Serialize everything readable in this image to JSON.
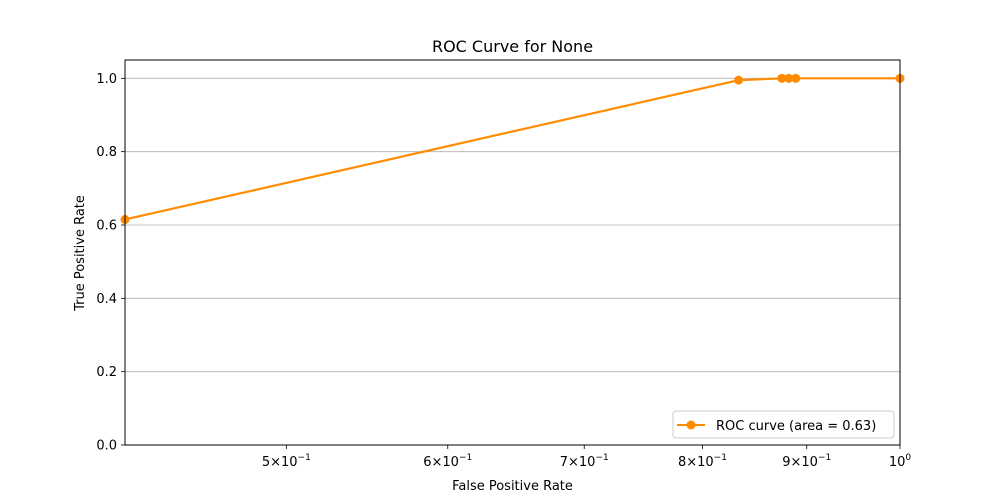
{
  "chart_data": {
    "type": "line",
    "title": "ROC Curve for None",
    "xlabel": "False Positive Rate",
    "ylabel": "True Positive Rate",
    "x_scale": "log",
    "xlim": [
      0.4167,
      1.0
    ],
    "ylim": [
      0.0,
      1.05
    ],
    "grid": "y",
    "x_ticks": [
      {
        "value": 0.5,
        "base": "5",
        "exp": "−1"
      },
      {
        "value": 0.6,
        "base": "6",
        "exp": "−1"
      },
      {
        "value": 0.7,
        "base": "7",
        "exp": "−1"
      },
      {
        "value": 0.8,
        "base": "8",
        "exp": "−1"
      },
      {
        "value": 0.9,
        "base": "9",
        "exp": "−1"
      },
      {
        "value": 1.0,
        "base": "",
        "exp": "0",
        "prefix": "10"
      }
    ],
    "y_ticks": [
      "0.0",
      "0.2",
      "0.4",
      "0.6",
      "0.8",
      "1.0"
    ],
    "legend_position": "bottom-right",
    "series": [
      {
        "name": "ROC curve (area = 0.63)",
        "color": "#ff8c00",
        "x": [
          0.4167,
          0.8333,
          0.875,
          0.8819,
          0.8889,
          1.0
        ],
        "y": [
          0.615,
          0.995,
          1.0,
          1.0,
          1.0,
          1.0
        ]
      }
    ]
  }
}
